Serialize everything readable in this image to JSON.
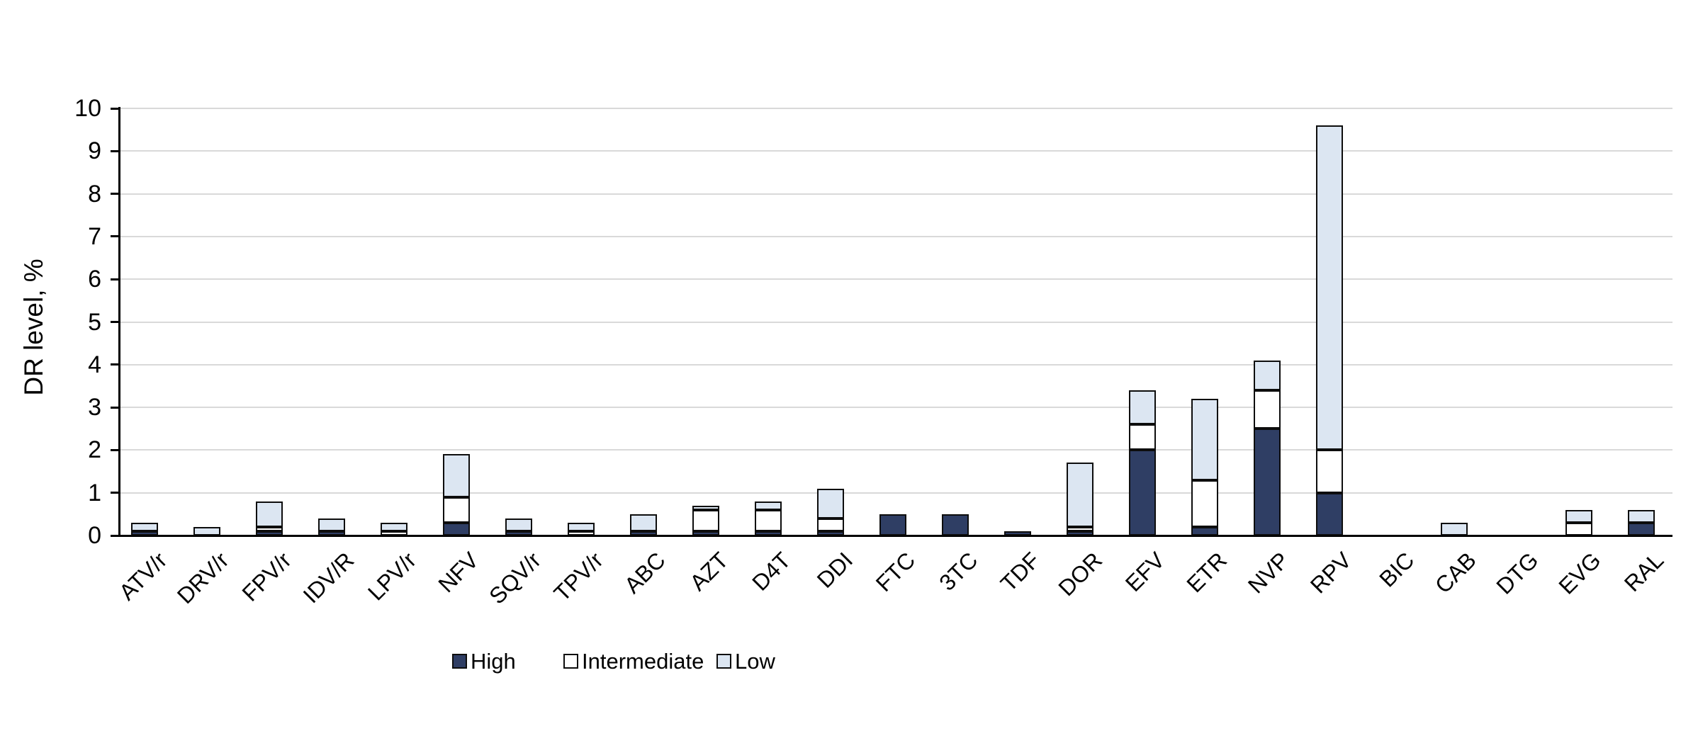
{
  "chart_data": {
    "type": "bar",
    "stacked": true,
    "title": "",
    "xlabel": "",
    "ylabel": "DR level, %",
    "ylim": [
      0,
      10
    ],
    "ytick_step": 1,
    "ytick_labels": [
      "0",
      "1",
      "2",
      "3",
      "4",
      "5",
      "6",
      "7",
      "8",
      "9",
      "10"
    ],
    "grid": true,
    "legend_position": "bottom",
    "categories": [
      "ATV/r",
      "DRV/r",
      "FPV/r",
      "IDV/R",
      "LPV/r",
      "NFV",
      "SQV/r",
      "TPV/r",
      "ABC",
      "AZT",
      "D4T",
      "DDI",
      "FTC",
      "3TC",
      "TDF",
      "DOR",
      "EFV",
      "ETR",
      "NVP",
      "RPV",
      "BIC",
      "CAB",
      "DTG",
      "EVG",
      "RAL"
    ],
    "series": [
      {
        "name": "High",
        "color": "#2f3e64",
        "values": [
          0.1,
          0,
          0.1,
          0.1,
          0,
          0.3,
          0.1,
          0,
          0.1,
          0.1,
          0.1,
          0.1,
          0.5,
          0.5,
          0.1,
          0.1,
          2.0,
          0.2,
          2.5,
          1.0,
          0,
          0,
          0,
          0,
          0.3
        ]
      },
      {
        "name": "Intermediate",
        "color": "#ffffff",
        "values": [
          0,
          0,
          0.1,
          0,
          0.1,
          0.6,
          0,
          0.1,
          0,
          0.5,
          0.5,
          0.3,
          0,
          0,
          0,
          0.1,
          0.6,
          1.1,
          0.9,
          1.0,
          0,
          0,
          0,
          0.3,
          0
        ]
      },
      {
        "name": "Low",
        "color": "#dce6f2",
        "values": [
          0.2,
          0.2,
          0.6,
          0.3,
          0.2,
          1.0,
          0.3,
          0.2,
          0.4,
          0.1,
          0.2,
          0.7,
          0,
          0,
          0,
          1.5,
          0.8,
          1.9,
          0.7,
          7.6,
          0,
          0.3,
          0,
          0.3,
          0.3
        ]
      }
    ],
    "colors": {
      "grid": "#d9d9d9",
      "axis": "#000000",
      "segment_border": "#0d0d0d",
      "background": "#ffffff"
    }
  }
}
